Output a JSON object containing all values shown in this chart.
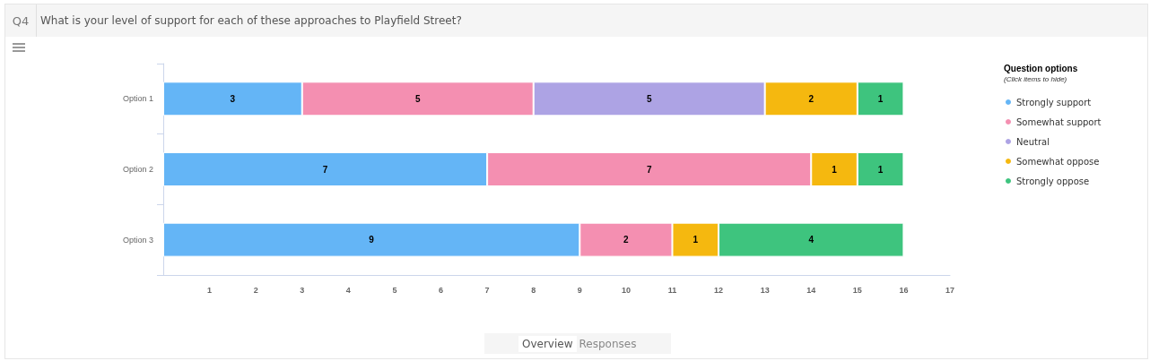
{
  "chart_data": {
    "type": "bar",
    "orientation": "horizontal",
    "stacked": true,
    "title": "What is your level of support for each of these approaches to Playfield Street?",
    "legend_title": "Question options",
    "annotations": [
      "Q4",
      "(Click items to hide)",
      "Overview",
      "Responses"
    ],
    "categories": [
      "Option 1",
      "Option 2",
      "Option 3"
    ],
    "series": [
      {
        "name": "Strongly support",
        "color": "#64b5f6",
        "values": [
          3,
          7,
          9
        ]
      },
      {
        "name": "Somewhat support",
        "color": "#f48fb1",
        "values": [
          5,
          7,
          2
        ]
      },
      {
        "name": "Neutral",
        "color": "#ada3e4",
        "values": [
          5,
          null,
          null
        ]
      },
      {
        "name": "Somewhat oppose",
        "color": "#f5b80f",
        "values": [
          2,
          1,
          1
        ]
      },
      {
        "name": "Strongly oppose",
        "color": "#3ec47e",
        "values": [
          1,
          1,
          4
        ]
      }
    ],
    "xlim": [
      0,
      17
    ],
    "xticks": [
      1,
      2,
      3,
      4,
      5,
      6,
      7,
      8,
      9,
      10,
      11,
      12,
      13,
      14,
      15,
      16,
      17
    ],
    "data_labels": true,
    "legend": "right",
    "grid": false
  }
}
